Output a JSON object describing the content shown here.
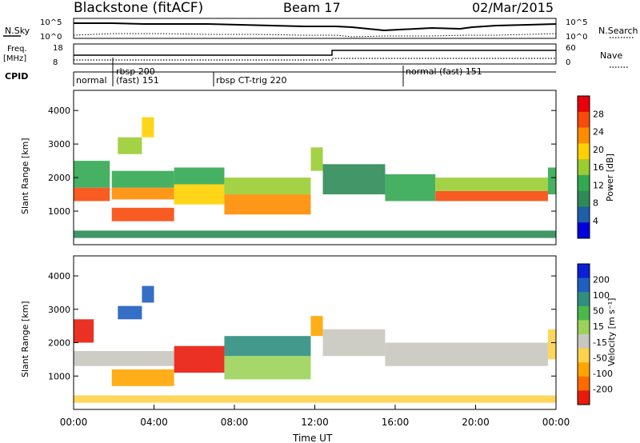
{
  "header": {
    "title": "Blackstone (fitACF)",
    "beam": "Beam 17",
    "date": "02/Mar/2015"
  },
  "panels": {
    "nsky_label": "N.Sky",
    "nsearch_label": "N.Search",
    "nsky_ticks": [
      "10^5",
      "10^0"
    ],
    "nsearch_ticks": [
      "10^5",
      "10^0"
    ],
    "freq_label_1": "Freq.",
    "freq_label_2": "[MHz]",
    "freq_ticks": [
      "18",
      "8"
    ],
    "nave_label": "Nave",
    "nave_ticks": [
      "60",
      "0"
    ],
    "cpid_label": "CPID",
    "cpid_segments": [
      {
        "label": "normal",
        "label2": "",
        "start_hour": 0.0
      },
      {
        "label": "rbsp 200",
        "label2": "(fast) 151",
        "start_hour": 1.17
      },
      {
        "label": "rbsp CT-trig 220",
        "label2": "",
        "start_hour": 7.0
      },
      {
        "label": "normal (fast) 151",
        "label2": "",
        "start_hour": 16.5
      }
    ]
  },
  "power_colorbar": {
    "label": "Power [dB]",
    "ticks": [
      "28",
      "24",
      "20",
      "16",
      "12",
      "8",
      "4"
    ],
    "colors": [
      "#e8000b",
      "#f74a0b",
      "#ff8c00",
      "#ffd000",
      "#9acd32",
      "#32a852",
      "#2e8b57",
      "#1e5fa8",
      "#0000dd"
    ]
  },
  "velocity_colorbar": {
    "label": "Velocity [m s⁻¹]",
    "ticks": [
      "200",
      "100",
      "50",
      "15",
      "-15",
      "-50",
      "-100",
      "-200"
    ],
    "colors": [
      "#0a1fd6",
      "#1f5fbf",
      "#2f8f7f",
      "#4bb84b",
      "#9bd35a",
      "#c8c8c0",
      "#ffd24a",
      "#ffa500",
      "#ff6a00",
      "#e81b0b"
    ]
  },
  "axes": {
    "ylabel": "Slant Range [km]",
    "yticks": [
      "4000",
      "3000",
      "2000",
      "1000"
    ],
    "xticks": [
      "00:00",
      "04:00",
      "08:00",
      "12:00",
      "16:00",
      "20:00",
      "00:00"
    ],
    "xlabel": "Time UT"
  },
  "chart_data": [
    {
      "type": "heatmap",
      "title": "Power",
      "xlabel": "Time UT",
      "ylabel": "Slant Range [km]",
      "xlim_hours": [
        0,
        24
      ],
      "ylim_km": [
        0,
        4600
      ],
      "colorbar_range_db": [
        0,
        30
      ],
      "bands": [
        {
          "t0": 0.0,
          "t1": 1.8,
          "r0": 1300,
          "r1": 1700,
          "value": 24
        },
        {
          "t0": 0.0,
          "t1": 1.8,
          "r0": 1700,
          "r1": 2500,
          "value": 12
        },
        {
          "t0": 1.9,
          "t1": 5.0,
          "r0": 700,
          "r1": 1100,
          "value": 26
        },
        {
          "t0": 1.9,
          "t1": 5.0,
          "r0": 1350,
          "r1": 1700,
          "value": 20
        },
        {
          "t0": 1.9,
          "t1": 5.0,
          "r0": 1700,
          "r1": 2200,
          "value": 10
        },
        {
          "t0": 2.2,
          "t1": 3.4,
          "r0": 2700,
          "r1": 3200,
          "value": 16
        },
        {
          "t0": 3.4,
          "t1": 4.0,
          "r0": 3200,
          "r1": 3800,
          "value": 18
        },
        {
          "t0": 5.0,
          "t1": 7.5,
          "r0": 1200,
          "r1": 1800,
          "value": 18
        },
        {
          "t0": 5.0,
          "t1": 7.5,
          "r0": 1800,
          "r1": 2300,
          "value": 10
        },
        {
          "t0": 7.5,
          "t1": 11.8,
          "r0": 900,
          "r1": 1500,
          "value": 22
        },
        {
          "t0": 7.5,
          "t1": 11.8,
          "r0": 1500,
          "r1": 2000,
          "value": 14
        },
        {
          "t0": 11.8,
          "t1": 12.4,
          "r0": 2200,
          "r1": 2900,
          "value": 16
        },
        {
          "t0": 12.4,
          "t1": 15.5,
          "r0": 1500,
          "r1": 2400,
          "value": 8
        },
        {
          "t0": 15.5,
          "t1": 18.0,
          "r0": 1300,
          "r1": 2100,
          "value": 10
        },
        {
          "t0": 18.0,
          "t1": 23.6,
          "r0": 1300,
          "r1": 1600,
          "value": 24
        },
        {
          "t0": 18.0,
          "t1": 23.6,
          "r0": 1600,
          "r1": 2000,
          "value": 14
        },
        {
          "t0": 23.6,
          "t1": 24.0,
          "r0": 1500,
          "r1": 2300,
          "value": 10
        },
        {
          "t0": 0.0,
          "t1": 24.0,
          "r0": 200,
          "r1": 420,
          "value": 8
        }
      ]
    },
    {
      "type": "heatmap",
      "title": "Velocity",
      "xlabel": "Time UT",
      "ylabel": "Slant Range [km]",
      "xlim_hours": [
        0,
        24
      ],
      "ylim_km": [
        0,
        4600
      ],
      "colorbar_range_ms": [
        -250,
        250
      ],
      "bands": [
        {
          "t0": 0.0,
          "t1": 1.0,
          "r0": 2000,
          "r1": 2700,
          "value": -200
        },
        {
          "t0": 0.0,
          "t1": 5.0,
          "r0": 1300,
          "r1": 1750,
          "value": 0
        },
        {
          "t0": 1.9,
          "t1": 5.0,
          "r0": 700,
          "r1": 1200,
          "value": -100
        },
        {
          "t0": 2.2,
          "t1": 3.4,
          "r0": 2700,
          "r1": 3100,
          "value": 200
        },
        {
          "t0": 3.4,
          "t1": 4.0,
          "r0": 3200,
          "r1": 3700,
          "value": 200
        },
        {
          "t0": 5.0,
          "t1": 7.5,
          "r0": 1100,
          "r1": 1900,
          "value": -200
        },
        {
          "t0": 7.5,
          "t1": 11.8,
          "r0": 900,
          "r1": 1600,
          "value": 50
        },
        {
          "t0": 7.5,
          "t1": 11.8,
          "r0": 1600,
          "r1": 2200,
          "value": 150
        },
        {
          "t0": 11.8,
          "t1": 12.4,
          "r0": 2200,
          "r1": 2800,
          "value": -120
        },
        {
          "t0": 12.4,
          "t1": 15.5,
          "r0": 1600,
          "r1": 2400,
          "value": 0
        },
        {
          "t0": 15.5,
          "t1": 23.6,
          "r0": 1300,
          "r1": 2000,
          "value": 0
        },
        {
          "t0": 23.6,
          "t1": 24.0,
          "r0": 1500,
          "r1": 2400,
          "value": -50
        },
        {
          "t0": 0.0,
          "t1": 24.0,
          "r0": 200,
          "r1": 420,
          "value": -60
        }
      ]
    }
  ]
}
